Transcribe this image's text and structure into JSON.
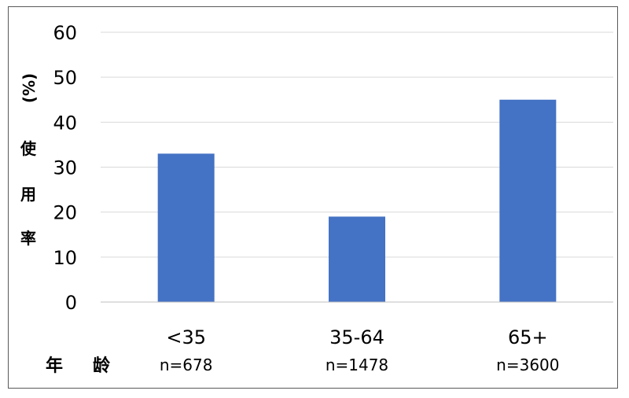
{
  "chart_data": {
    "type": "bar",
    "categories": [
      "<35",
      "35-64",
      "65+"
    ],
    "category_counts": [
      "n=678",
      "n=1478",
      "n=3600"
    ],
    "values": [
      33,
      19,
      45
    ],
    "ylabel_unit": "(%)",
    "ylabel_chars": [
      "使",
      "用",
      "率"
    ],
    "xlabel_chars": [
      "年",
      "龄"
    ],
    "ylim": [
      0,
      60
    ],
    "yticks": [
      "0",
      "10",
      "20",
      "30",
      "40",
      "50",
      "60"
    ],
    "grid": true,
    "colors": {
      "bar": "#4472C4",
      "grid": "#d9d9d9",
      "axis": "#bfbfbf"
    }
  }
}
